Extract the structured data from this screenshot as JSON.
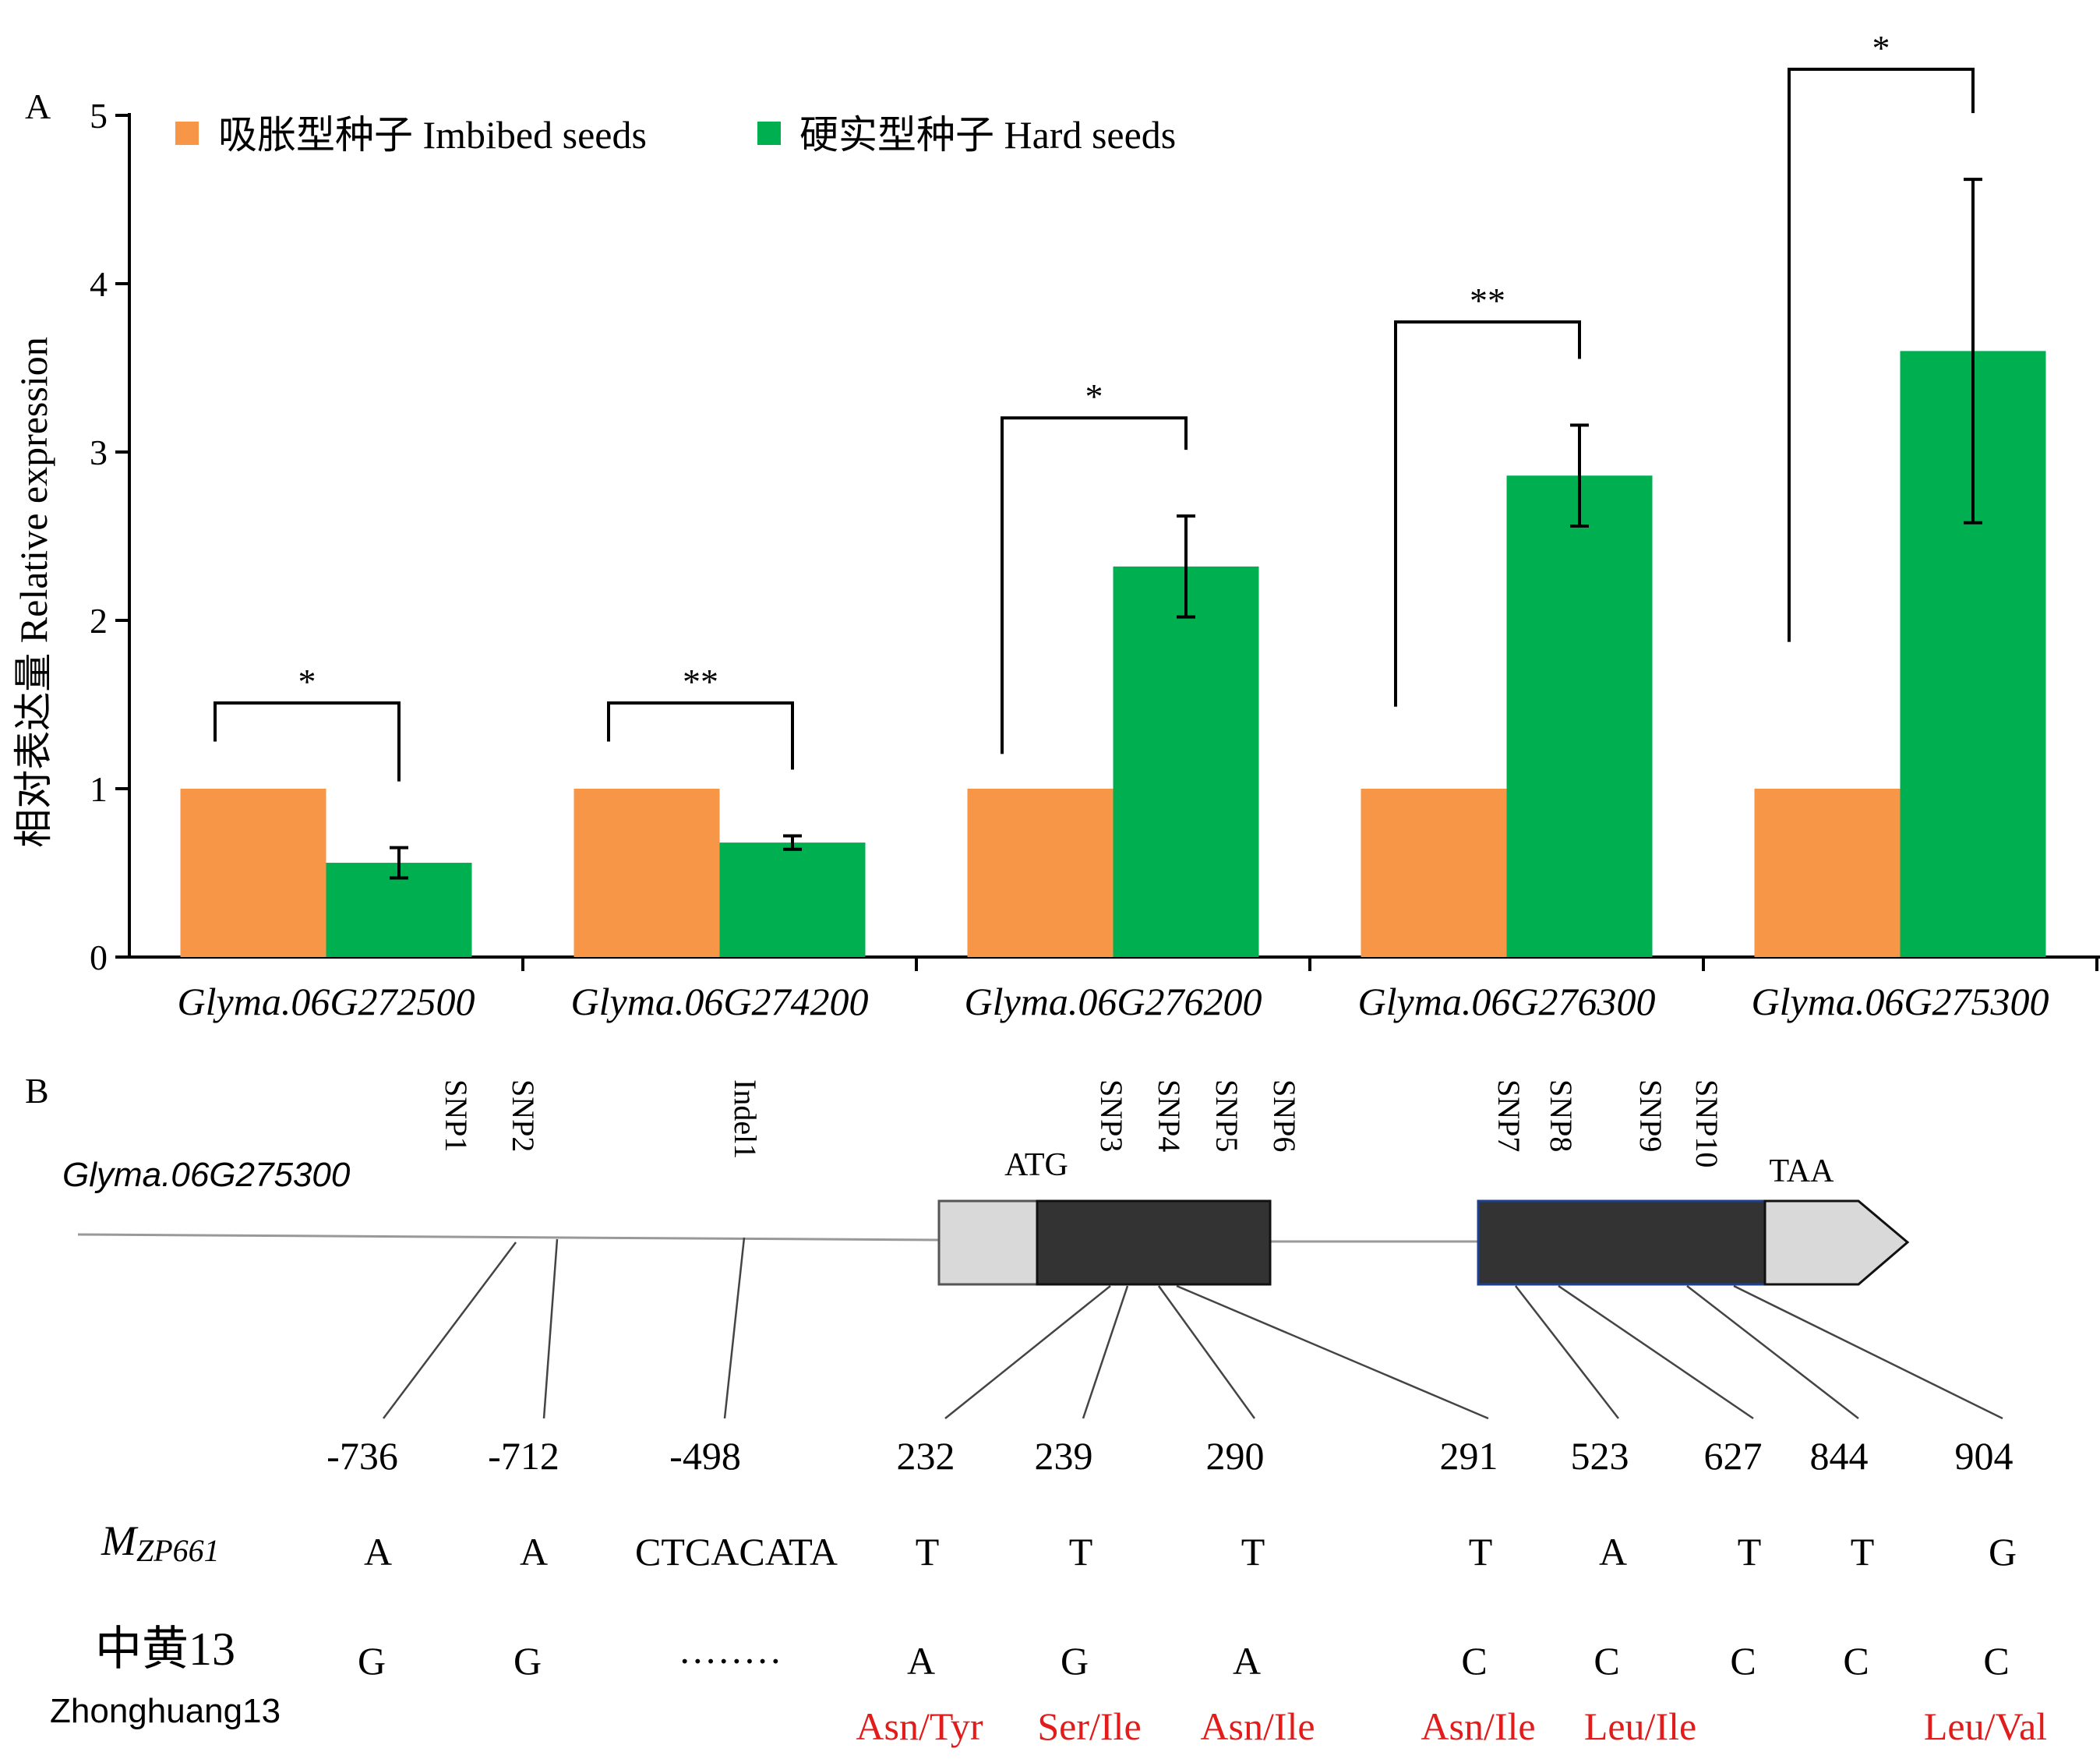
{
  "panel_a": {
    "label": "A",
    "ylabel": "相对表达量 Relative expression",
    "legend": [
      {
        "label": "吸胀型种子 Imbibed seeds",
        "color": "#f79646"
      },
      {
        "label": "硬实型种子 Hard seeds",
        "color": "#00b050"
      }
    ],
    "significance": [
      "*",
      "**",
      "*",
      "**",
      "*"
    ]
  },
  "chart_data": {
    "type": "bar",
    "categories": [
      "Glyma.06G272500",
      "Glyma.06G274200",
      "Glyma.06G276200",
      "Glyma.06G276300",
      "Glyma.06G275300"
    ],
    "series": [
      {
        "name": "吸胀型种子 Imbibed seeds",
        "color": "#f79646",
        "values": [
          1,
          1,
          1,
          1,
          1
        ]
      },
      {
        "name": "硬实型种子 Hard seeds",
        "color": "#00b050",
        "values": [
          0.56,
          0.68,
          2.32,
          2.86,
          3.6
        ],
        "error": [
          0.09,
          0.04,
          0.3,
          0.3,
          1.02
        ]
      }
    ],
    "ylabel": "相对表达量 Relative expression",
    "ylim": [
      0,
      5
    ],
    "yticks": [
      0,
      1,
      2,
      3,
      4,
      5
    ],
    "grid": false,
    "legend_position": "top-left"
  },
  "panel_b": {
    "label": "B",
    "gene": "Glyma.06G275300",
    "atg": "ATG",
    "taa": "TAA",
    "markers": [
      "SNP1",
      "SNP2",
      "Indel1",
      "SNP3",
      "SNP4",
      "SNP5",
      "SNP6",
      "SNP7",
      "SNP8",
      "SNP9",
      "SNP10"
    ],
    "positions": [
      "-736",
      "-712",
      "-498",
      "232",
      "239",
      "290",
      "291",
      "523",
      "627",
      "844",
      "904"
    ],
    "row1_label": "M",
    "row1_sub": "ZP661",
    "row1": [
      "A",
      "A",
      "CTCACATA",
      "T",
      "T",
      "T",
      "T",
      "A",
      "T",
      "T",
      "G"
    ],
    "row2_label": "中黄13",
    "row2_sublabel": "Zhonghuang13",
    "row2": [
      "G",
      "G",
      "········",
      "A",
      "G",
      "A",
      "C",
      "C",
      "C",
      "C",
      "C"
    ],
    "aa_changes": [
      "Asn/Tyr",
      "Ser/Ile",
      "Asn/Ile",
      "Asn/Ile",
      "Leu/Ile",
      "Leu/Val"
    ]
  }
}
